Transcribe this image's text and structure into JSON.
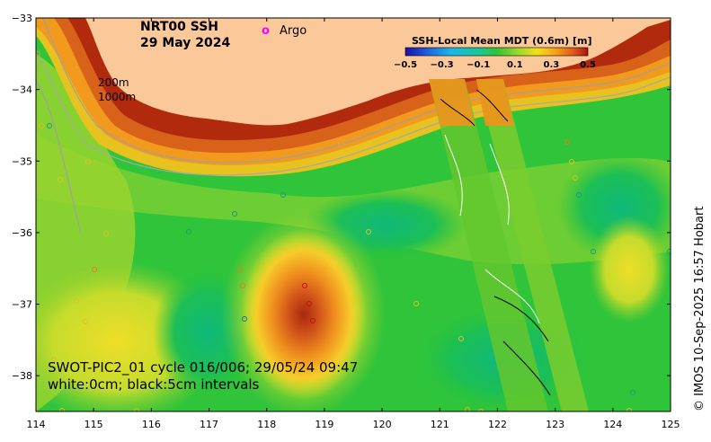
{
  "map": {
    "title_line1": "NRT00 SSH",
    "title_line2": "29 May 2024",
    "argo_symbol": "o",
    "argo_label": "Argo",
    "depth_label_200": "200m",
    "depth_label_1000": "1000m",
    "swot_line1": "SWOT-PIC2_01 cycle 016/006; 29/05/24 09:47",
    "swot_line2": "white:0cm; black:5cm intervals",
    "credit": "© IMOS 10-Sep-2025 16:57 Hobart",
    "colors": {
      "land": "#fbc89a",
      "argo": "#ff00ff",
      "ocean_green": "#2fc43a"
    }
  },
  "colorbar": {
    "title": "SSH-Local Mean MDT (0.6m) [m]",
    "ticks": [
      "−0.5",
      "−0.3",
      "−0.1",
      "0.1",
      "0.3",
      "0.5"
    ],
    "range": [
      -0.5,
      0.5
    ],
    "colors": [
      "#1b0fa6",
      "#1f5fe0",
      "#19b8e8",
      "#16c79a",
      "#2ec43a",
      "#9fd82a",
      "#f2e21a",
      "#f7a21a",
      "#e0581a",
      "#b01212"
    ]
  },
  "axes": {
    "x_range": [
      114,
      125
    ],
    "y_range": [
      -38.5,
      -33
    ],
    "x_ticks": [
      "114",
      "115",
      "116",
      "117",
      "118",
      "119",
      "120",
      "121",
      "122",
      "123",
      "124",
      "125"
    ],
    "y_ticks": [
      "−33",
      "−34",
      "−35",
      "−36",
      "−37",
      "−38"
    ],
    "x_values": [
      114,
      115,
      116,
      117,
      118,
      119,
      120,
      121,
      122,
      123,
      124,
      125
    ],
    "y_values": [
      -33,
      -34,
      -35,
      -36,
      -37,
      -38
    ]
  }
}
